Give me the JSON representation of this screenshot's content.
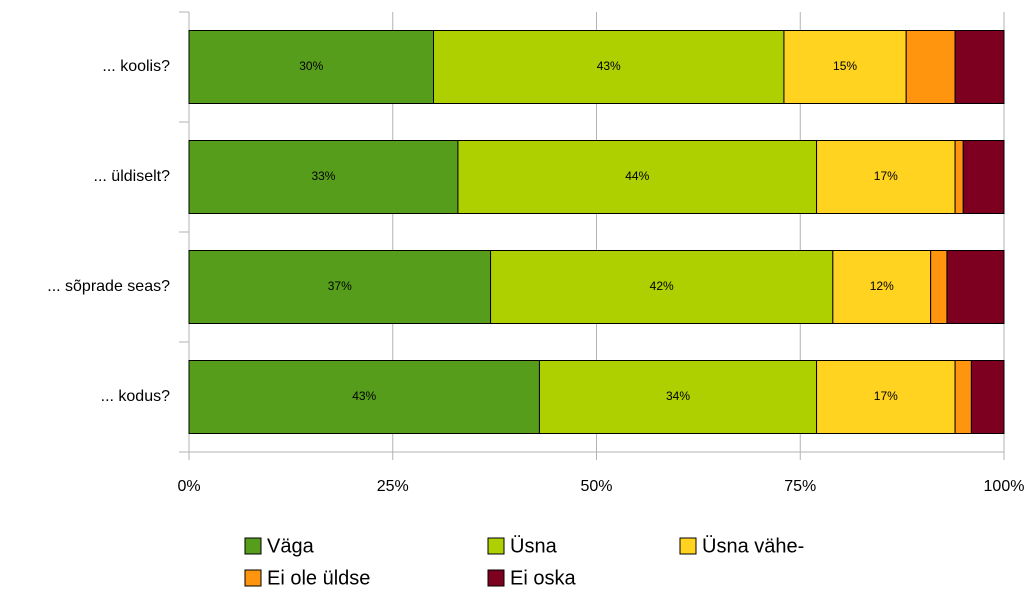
{
  "chart_data": {
    "type": "stacked_barh",
    "categories": [
      "... koolis?",
      "... üldiselt?",
      "... sõprade seas?",
      "... kodus?"
    ],
    "series": [
      {
        "name": "Väga",
        "color": "#579d1c",
        "values": [
          30,
          33,
          37,
          43
        ],
        "value_labels": [
          "30%",
          "33%",
          "37%",
          "43%"
        ]
      },
      {
        "name": "Üsna",
        "color": "#aecf00",
        "values": [
          43,
          44,
          42,
          34
        ],
        "value_labels": [
          "43%",
          "44%",
          "42%",
          "34%"
        ]
      },
      {
        "name": "Üsna vähe-",
        "color": "#ffd320",
        "values": [
          15,
          17,
          12,
          17
        ],
        "value_labels": [
          "15%",
          "17%",
          "12%",
          "17%"
        ]
      },
      {
        "name": "Ei ole üldse",
        "color": "#ff950e",
        "values": [
          6,
          1,
          2,
          2
        ]
      },
      {
        "name": "Ei oska",
        "color": "#7e0021",
        "values": [
          6,
          5,
          7,
          4
        ]
      }
    ],
    "xlim": [
      0,
      100
    ],
    "xticks": [
      {
        "value": 0,
        "label": "0%"
      },
      {
        "value": 25,
        "label": "25%"
      },
      {
        "value": 50,
        "label": "50%"
      },
      {
        "value": 75,
        "label": "75%"
      },
      {
        "value": 100,
        "label": "100%"
      }
    ],
    "grid": true,
    "legend": "bottom"
  }
}
